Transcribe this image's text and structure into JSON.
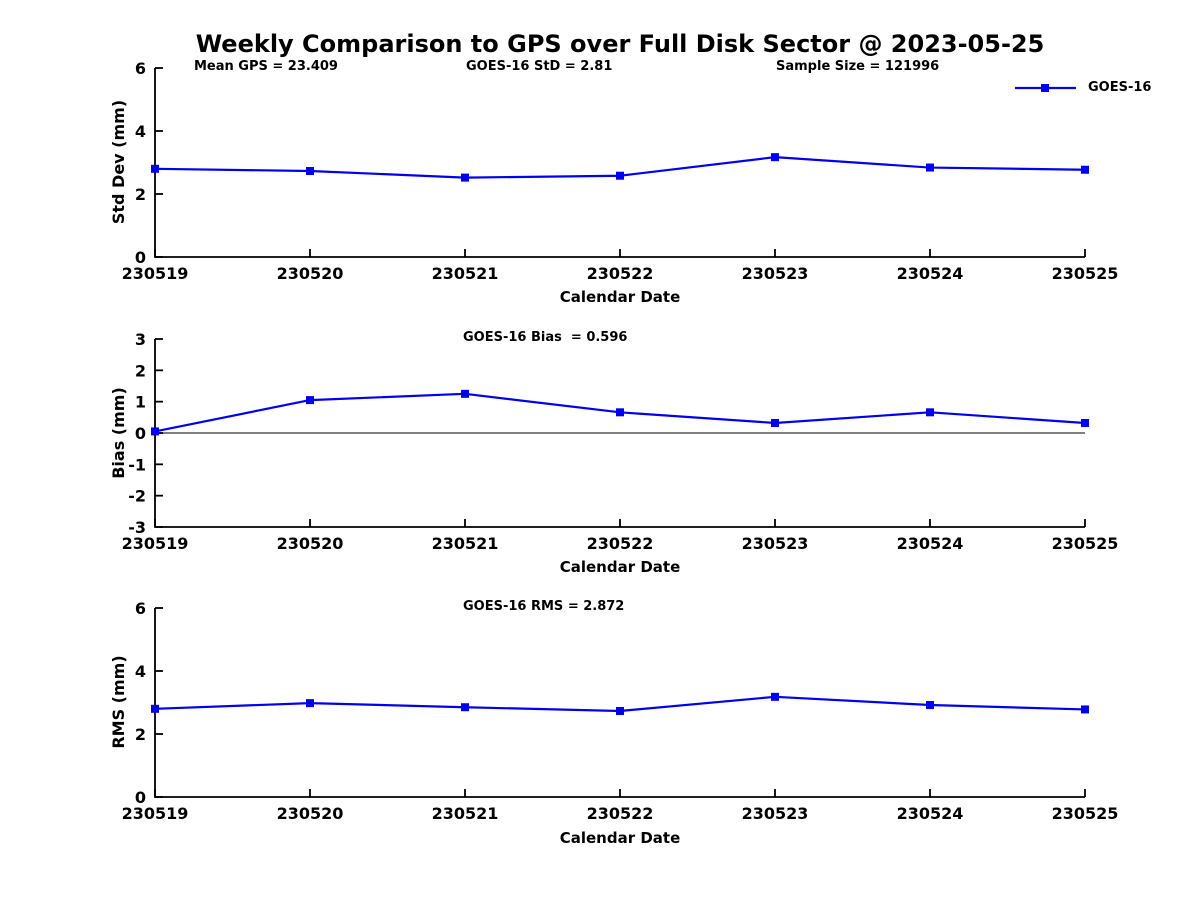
{
  "title": "Weekly Comparison to GPS over Full Disk Sector @ 2023-05-25",
  "legend": {
    "label": "GOES-16",
    "color": "#0000ee"
  },
  "annotations": {
    "mean_gps": "Mean GPS = 23.409",
    "std": "GOES-16 StD = 2.81",
    "sample_size": "Sample Size = 121996",
    "bias": "GOES-16 Bias  = 0.596",
    "rms": "GOES-16 RMS = 2.872"
  },
  "stats": {
    "mean_gps": 23.409,
    "goes16_std": 2.81,
    "sample_size": 121996,
    "goes16_bias": 0.596,
    "goes16_rms": 2.872
  },
  "chart_data": [
    {
      "type": "line",
      "categories": [
        "230519",
        "230520",
        "230521",
        "230522",
        "230523",
        "230524",
        "230525"
      ],
      "series": [
        {
          "name": "GOES-16",
          "values": [
            2.8,
            2.73,
            2.52,
            2.58,
            3.17,
            2.84,
            2.77
          ]
        }
      ],
      "title": "",
      "xlabel": "Calendar Date",
      "ylabel": "Std Dev (mm)",
      "ylim": [
        0,
        6
      ],
      "yticks": [
        0,
        2,
        4,
        6
      ],
      "zero_line": false,
      "grid": false,
      "marker": "square",
      "line_color": "#0000ee",
      "legend_position": "top-right"
    },
    {
      "type": "line",
      "categories": [
        "230519",
        "230520",
        "230521",
        "230522",
        "230523",
        "230524",
        "230525"
      ],
      "series": [
        {
          "name": "GOES-16",
          "values": [
            0.05,
            1.05,
            1.25,
            0.66,
            0.32,
            0.66,
            0.32
          ]
        }
      ],
      "title": "GOES-16 Bias  = 0.596",
      "xlabel": "Calendar Date",
      "ylabel": "Bias (mm)",
      "ylim": [
        -3,
        3
      ],
      "yticks": [
        -3,
        -2,
        -1,
        0,
        1,
        2,
        3
      ],
      "zero_line": true,
      "grid": false,
      "marker": "square",
      "line_color": "#0000ee",
      "legend_position": "none"
    },
    {
      "type": "line",
      "categories": [
        "230519",
        "230520",
        "230521",
        "230522",
        "230523",
        "230524",
        "230525"
      ],
      "series": [
        {
          "name": "GOES-16",
          "values": [
            2.8,
            2.98,
            2.85,
            2.73,
            3.18,
            2.92,
            2.78
          ]
        }
      ],
      "title": "GOES-16 RMS = 2.872",
      "xlabel": "Calendar Date",
      "ylabel": "RMS (mm)",
      "ylim": [
        0,
        6
      ],
      "yticks": [
        0,
        2,
        4,
        6
      ],
      "zero_line": false,
      "grid": false,
      "marker": "square",
      "line_color": "#0000ee",
      "legend_position": "none"
    }
  ]
}
